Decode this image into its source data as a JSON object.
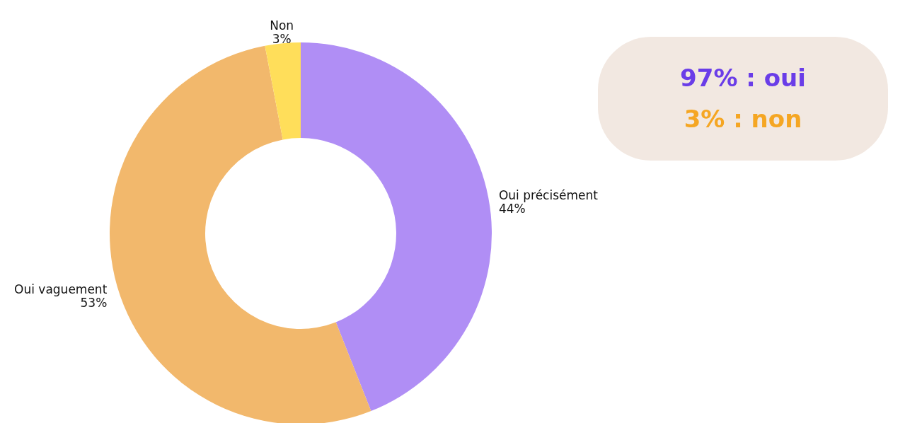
{
  "chart_data": [
    {
      "type": "donut",
      "categories": [
        "Oui précisément",
        "Oui vaguement",
        "Non"
      ],
      "values": [
        44,
        53,
        3
      ],
      "colors": [
        "#b08ef5",
        "#f2b86c",
        "#ffde5a"
      ],
      "value_labels": [
        "44%",
        "53%",
        "3%"
      ]
    },
    {
      "type": "other",
      "annotations": [
        "97% : oui",
        "3% : non"
      ]
    }
  ]
}
